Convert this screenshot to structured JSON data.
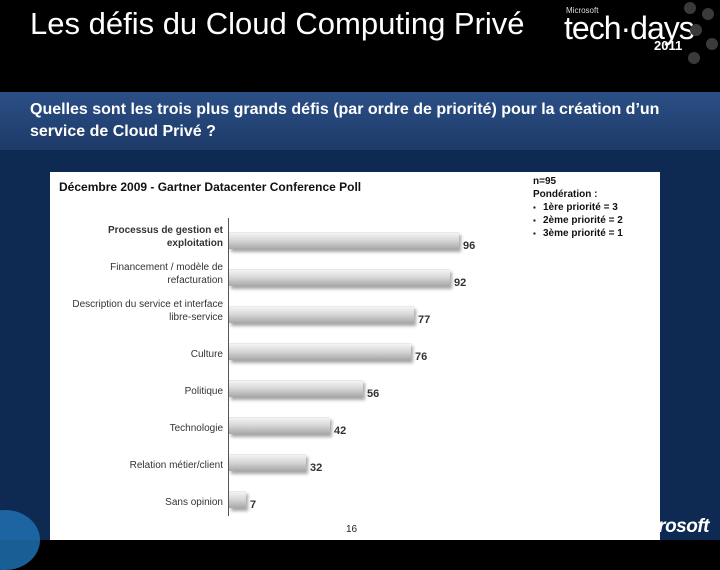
{
  "header": {
    "title": "Les défis du Cloud Computing Privé",
    "logo_brand": "Microsoft",
    "logo_event": "tech·days",
    "logo_year": "2011"
  },
  "subtitle": "Quelles sont les trois plus grands défis (par ordre de priorité) pour la création d’un  service de Cloud Privé ?",
  "notes": {
    "n": "n=95",
    "weighting_title": "Pondération :",
    "weights": [
      "1ère priorité = 3",
      "2ème priorité = 2",
      "3ème priorité = 1"
    ]
  },
  "page_number": "16",
  "footer_logo": "Microsoft",
  "chart_data": {
    "type": "bar",
    "orientation": "horizontal",
    "title": "Décembre 2009 - Gartner Datacenter Conference Poll",
    "categories": [
      "Processus de gestion et exploitation",
      "Financement / modèle de refacturation",
      "Description du service et interface libre-service",
      "Culture",
      "Politique",
      "Technologie",
      "Relation métier/client",
      "Sans opinion"
    ],
    "values": [
      96,
      92,
      77,
      76,
      56,
      42,
      32,
      7
    ],
    "xlim": [
      0,
      100
    ],
    "grid": false,
    "legend": "none"
  }
}
